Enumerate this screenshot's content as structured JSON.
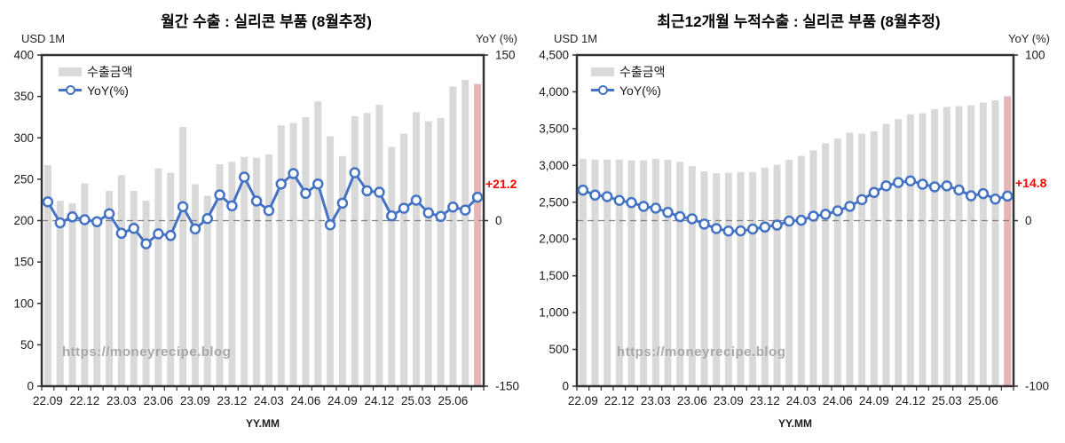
{
  "page": {
    "background": "#ffffff"
  },
  "chart_data": [
    {
      "type": "combo",
      "title": "월간 수출 : 실리콘 부품 (8월추정)",
      "left_axis_unit": "USD 1M",
      "right_axis_unit": "YoY (%)",
      "xlabel": "YY.MM",
      "watermark": "https://moneyrecipe.blog",
      "legend": [
        {
          "label": "수출금액",
          "series_type": "bar",
          "color": "#d9d9d9"
        },
        {
          "label": "YoY(%)",
          "series_type": "line",
          "color": "#4472c4"
        }
      ],
      "categories": [
        "22.09",
        "22.10",
        "22.11",
        "22.12",
        "23.01",
        "23.02",
        "23.03",
        "23.04",
        "23.05",
        "23.06",
        "23.07",
        "23.08",
        "23.09",
        "23.10",
        "23.11",
        "23.12",
        "24.01",
        "24.02",
        "24.03",
        "24.04",
        "24.05",
        "24.06",
        "24.07",
        "24.08",
        "24.09",
        "24.10",
        "24.11",
        "24.12",
        "25.01",
        "25.02",
        "25.03",
        "25.04",
        "25.05",
        "25.06",
        "25.07",
        "25.08"
      ],
      "x_tick_label_every": 3,
      "left_axis": {
        "range": [
          0,
          400
        ],
        "tick_values": [
          400,
          350,
          300,
          250,
          200,
          150,
          100,
          50,
          0
        ],
        "tick_labels": [
          "400",
          "350",
          "300",
          "250",
          "200",
          "150",
          "100",
          "50",
          "0"
        ]
      },
      "right_axis": {
        "range": [
          -150,
          150
        ],
        "tick_values": [
          150,
          0,
          -150
        ],
        "tick_labels": [
          "150",
          "0",
          "-150"
        ]
      },
      "series": [
        {
          "name": "수출금액",
          "type": "bar",
          "axis": "left",
          "color": "#d9d9d9",
          "highlight_last_color": "#e6b6b6",
          "values": [
            267,
            224,
            221,
            245,
            197,
            236,
            255,
            236,
            224,
            263,
            258,
            313,
            244,
            230,
            268,
            271,
            277,
            276,
            280,
            315,
            318,
            325,
            344,
            302,
            278,
            326,
            330,
            340,
            289,
            305,
            331,
            320,
            324,
            362,
            370,
            365
          ]
        },
        {
          "name": "YoY(%)",
          "type": "line",
          "axis": "right",
          "color": "#4472c4",
          "marker": "circle",
          "values": [
            17.0,
            -2.0,
            3.4,
            0.8,
            -1.0,
            6.2,
            -11.5,
            -7.0,
            -21.0,
            -12.0,
            -13.5,
            12.6,
            -7.5,
            1.8,
            23.3,
            13.4,
            39.4,
            17.7,
            9.1,
            33.2,
            42.6,
            24.7,
            33.2,
            -3.8,
            15.8,
            43.4,
            27.0,
            25.7,
            4.3,
            11.2,
            18.5,
            7.0,
            3.8,
            12.3,
            9.6,
            21.2
          ]
        }
      ],
      "zero_line": {
        "axis": "right",
        "value": 0,
        "style": "dashed",
        "color": "#808080"
      },
      "annotation": {
        "text": "+21.2",
        "color": "#ff0000"
      }
    },
    {
      "type": "combo",
      "title": "최근12개월 누적수출 : 실리콘 부품 (8월추정)",
      "left_axis_unit": "USD 1M",
      "right_axis_unit": "YoY (%)",
      "xlabel": "YY.MM",
      "watermark": "https://moneyrecipe.blog",
      "legend": [
        {
          "label": "수출금액",
          "series_type": "bar",
          "color": "#d9d9d9"
        },
        {
          "label": "YoY(%)",
          "series_type": "line",
          "color": "#4472c4"
        }
      ],
      "categories": [
        "22.09",
        "22.10",
        "22.11",
        "22.12",
        "23.01",
        "23.02",
        "23.03",
        "23.04",
        "23.05",
        "23.06",
        "23.07",
        "23.08",
        "23.09",
        "23.10",
        "23.11",
        "23.12",
        "24.01",
        "24.02",
        "24.03",
        "24.04",
        "24.05",
        "24.06",
        "24.07",
        "24.08",
        "24.09",
        "24.10",
        "24.11",
        "24.12",
        "25.01",
        "25.02",
        "25.03",
        "25.04",
        "25.05",
        "25.06",
        "25.07",
        "25.08"
      ],
      "x_tick_label_every": 3,
      "left_axis": {
        "range": [
          0,
          4500
        ],
        "tick_values": [
          4500,
          4000,
          3500,
          3000,
          2500,
          2000,
          1500,
          1000,
          500,
          0
        ],
        "tick_labels": [
          "4,500",
          "4,000",
          "3,500",
          "3,000",
          "2,500",
          "2,000",
          "1,500",
          "1,000",
          "500",
          "0"
        ]
      },
      "right_axis": {
        "range": [
          -100,
          100
        ],
        "tick_values": [
          100,
          0,
          -100
        ],
        "tick_labels": [
          "100",
          "0",
          "-100"
        ]
      },
      "series": [
        {
          "name": "수출금액",
          "type": "bar",
          "axis": "left",
          "color": "#d9d9d9",
          "highlight_last_color": "#e6b6b6",
          "values": [
            3090,
            3080,
            3080,
            3080,
            3070,
            3070,
            3090,
            3075,
            3050,
            2990,
            2920,
            2895,
            2900,
            2910,
            2910,
            2970,
            3010,
            3075,
            3130,
            3205,
            3300,
            3365,
            3445,
            3430,
            3465,
            3565,
            3630,
            3695,
            3710,
            3765,
            3795,
            3805,
            3815,
            3855,
            3885,
            3940
          ]
        },
        {
          "name": "YoY(%)",
          "type": "line",
          "axis": "right",
          "color": "#4472c4",
          "marker": "circle",
          "values": [
            18.4,
            15.4,
            14.5,
            12.2,
            10.9,
            8.6,
            7.5,
            5.0,
            2.4,
            1.1,
            -2.1,
            -4.8,
            -6.3,
            -6.2,
            -5.1,
            -3.9,
            -2.7,
            -0.3,
            0.2,
            2.7,
            3.8,
            5.9,
            8.6,
            12.7,
            17.0,
            21.0,
            23.0,
            24.0,
            22.0,
            20.4,
            21.0,
            18.5,
            15.0,
            16.3,
            13.0,
            14.8
          ]
        }
      ],
      "zero_line": {
        "axis": "right",
        "value": 0,
        "style": "dashed",
        "color": "#808080"
      },
      "annotation": {
        "text": "+14.8",
        "color": "#ff0000"
      }
    }
  ]
}
